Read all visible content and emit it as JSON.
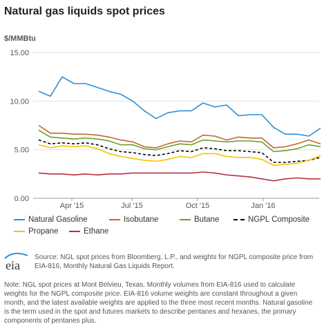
{
  "title": "Natural gas liquids spot prices",
  "unit_label": "$/MMBtu",
  "source_text": "Source: NGL spot prices from Bloomberg, L.P., and weights for NGPL composite price from EIA-816, Monthly Natural Gas Liquids Report.",
  "note_text": "Note: NGL spot prices at Mont Belvieu, Texas. Monthly volumes from EIA-816 used to calculate weights for the NGPL composite price. EIA-816 volume weights are constant throughout a given month, and the latest available weights are applied to the three most recent months. Natural gasoline is the term used in the spot and futures markets to describe pentanes and hexanes, the primary components of pentanes plus.",
  "logo_text": "eia",
  "chart_data": {
    "type": "line",
    "title": "Natural gas liquids spot prices",
    "ylabel": "$/MMBtu",
    "xlabel": "",
    "ylim": [
      0,
      15
    ],
    "yticks": [
      "0.00",
      "5.00",
      "10.00",
      "15.00"
    ],
    "xticks": [
      "Apr '15",
      "Jul '15",
      "Oct '15",
      "Jan '16"
    ],
    "grid": true,
    "legend_position": "bottom",
    "x": [
      "Mar '15 (early)",
      "Mar '15 (late)",
      "Apr '15 (early)",
      "Apr '15 (late)",
      "May '15 (early)",
      "May '15 (late)",
      "Jun '15 (early)",
      "Jun '15 (late)",
      "Jul '15 (early)",
      "Jul '15 (late)",
      "Aug '15 (early)",
      "Aug '15 (late)",
      "Sep '15 (early)",
      "Sep '15 (late)",
      "Oct '15 (early)",
      "Oct '15 (late)",
      "Nov '15 (early)",
      "Nov '15 (late)",
      "Dec '15 (early)",
      "Dec '15 (late)",
      "Jan '16 (early)",
      "Jan '16 (late)",
      "Feb '16 (early)",
      "Feb '16 (late)",
      "Mar '16 (early)"
    ],
    "series": [
      {
        "name": "Natural Gasoline",
        "color": "#2e8fd6",
        "dash": false,
        "values": [
          11.0,
          10.5,
          12.5,
          11.8,
          11.8,
          11.4,
          11.0,
          10.7,
          10.0,
          9.0,
          8.2,
          8.8,
          9.0,
          9.0,
          9.8,
          9.4,
          9.6,
          8.5,
          8.6,
          8.6,
          7.3,
          6.6,
          6.6,
          6.4,
          7.2
        ]
      },
      {
        "name": "Isobutane",
        "color": "#c0692b",
        "dash": false,
        "values": [
          7.5,
          6.7,
          6.7,
          6.6,
          6.6,
          6.5,
          6.3,
          6.0,
          5.8,
          5.3,
          5.2,
          5.6,
          5.9,
          5.8,
          6.5,
          6.4,
          6.0,
          6.3,
          6.2,
          6.2,
          5.2,
          5.3,
          5.6,
          6.0,
          5.6
        ]
      },
      {
        "name": "Butane",
        "color": "#6d9e2e",
        "dash": false,
        "values": [
          7.0,
          6.3,
          6.2,
          6.1,
          6.2,
          6.1,
          5.9,
          5.5,
          5.5,
          5.1,
          5.0,
          5.3,
          5.6,
          5.5,
          6.0,
          5.9,
          5.8,
          5.9,
          5.9,
          5.8,
          4.8,
          4.9,
          5.1,
          5.5,
          5.3
        ]
      },
      {
        "name": "NGPL Composite",
        "color": "#000000",
        "dash": true,
        "values": [
          6.0,
          5.6,
          5.7,
          5.6,
          5.7,
          5.5,
          5.1,
          4.8,
          4.7,
          4.5,
          4.4,
          4.6,
          4.9,
          4.8,
          5.2,
          5.1,
          4.9,
          4.9,
          4.8,
          4.7,
          3.7,
          3.7,
          3.8,
          3.9,
          4.2
        ]
      },
      {
        "name": "Propane",
        "color": "#f3c300",
        "dash": false,
        "values": [
          5.5,
          5.2,
          5.4,
          5.3,
          5.4,
          5.1,
          4.6,
          4.3,
          4.1,
          3.9,
          3.8,
          4.0,
          4.3,
          4.2,
          4.6,
          4.6,
          4.3,
          4.2,
          4.2,
          4.0,
          3.4,
          3.5,
          3.6,
          3.9,
          4.4
        ]
      },
      {
        "name": "Ethane",
        "color": "#b53043",
        "dash": false,
        "values": [
          2.6,
          2.5,
          2.5,
          2.4,
          2.5,
          2.4,
          2.5,
          2.5,
          2.6,
          2.6,
          2.6,
          2.6,
          2.6,
          2.6,
          2.7,
          2.6,
          2.4,
          2.3,
          2.2,
          2.0,
          1.8,
          2.0,
          2.1,
          2.0,
          2.0
        ]
      }
    ]
  }
}
